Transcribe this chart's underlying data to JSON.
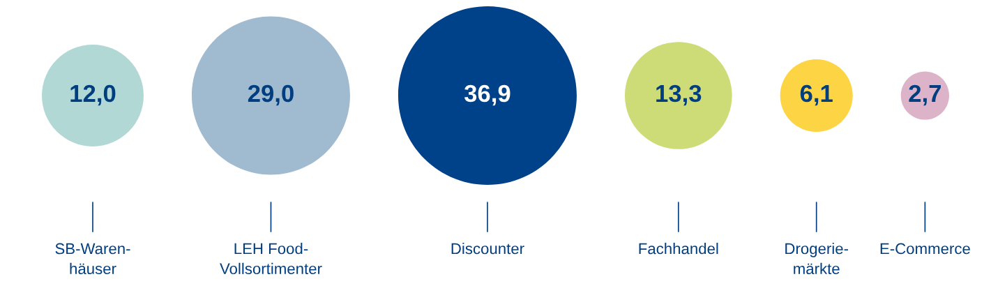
{
  "chart_data": {
    "type": "other",
    "categories": [
      "SB-Waren-\nhäuser",
      "LEH Food-\nVollsortimenter",
      "Discounter",
      "Fachhandel",
      "Drogerie-\nmärkte",
      "E-Commerce"
    ],
    "values": [
      12.0,
      29.0,
      36.9,
      13.3,
      6.1,
      2.7
    ],
    "value_labels": [
      "12,0",
      "29,0",
      "36,9",
      "13,3",
      "6,1",
      "2,7"
    ],
    "colors": [
      "#b2d8d6",
      "#a0bad0",
      "#00428a",
      "#cddc77",
      "#fdd444",
      "#dcb3c8"
    ]
  }
}
